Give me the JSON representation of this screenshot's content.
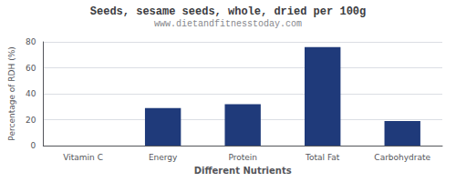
{
  "chart_data": {
    "type": "bar",
    "title": "Seeds, sesame seeds, whole, dried per 100g",
    "subtitle": "www.dietandfitnesstoday.com",
    "xlabel": "Different Nutrients",
    "ylabel": "Percentage of RDH (%)",
    "categories": [
      "Vitamin C",
      "Energy",
      "Protein",
      "Total Fat",
      "Carbohydrate"
    ],
    "values": [
      0,
      29,
      32,
      76,
      19
    ],
    "color": "#1f3a7a",
    "ylim": [
      0,
      80
    ],
    "yticks": [
      0,
      20,
      40,
      60,
      80
    ],
    "grid": true
  }
}
